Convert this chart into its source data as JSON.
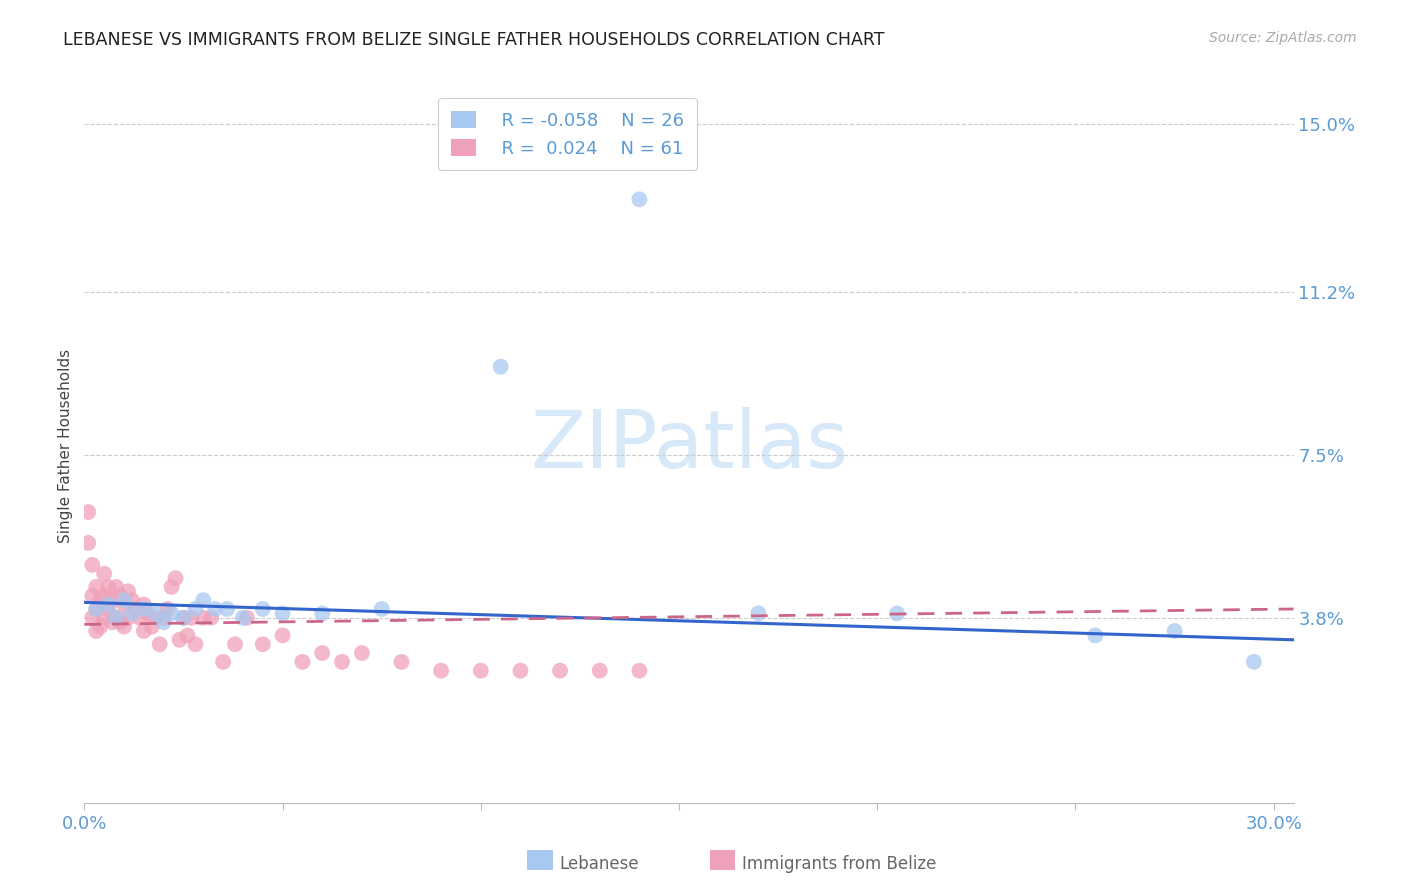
{
  "title": "LEBANESE VS IMMIGRANTS FROM BELIZE SINGLE FATHER HOUSEHOLDS CORRELATION CHART",
  "source": "Source: ZipAtlas.com",
  "ylabel": "Single Father Households",
  "title_color": "#222222",
  "source_color": "#aaaaaa",
  "axis_tick_color": "#5b9bd5",
  "blue_color": "#a8c8f0",
  "pink_color": "#f0a0b8",
  "line_blue_color": "#3366cc",
  "line_pink_color": "#cc6688",
  "grid_color": "#cccccc",
  "watermark_color": "#d0e4f7",
  "legend_label_color": "#5b9bd5",
  "legend_r1": "R = -0.058",
  "legend_n1": "N = 26",
  "legend_r2": "R =  0.024",
  "legend_n2": "N = 61",
  "bottom_legend_blue_label": "Lebanese",
  "bottom_legend_pink_label": "Immigrants from Belize",
  "xlim_min": 0.0,
  "xlim_max": 0.305,
  "ylim_min": -0.004,
  "ylim_max": 0.158,
  "ytick_vals": [
    0.038,
    0.075,
    0.112,
    0.15
  ],
  "ytick_labels": [
    "3.8%",
    "7.5%",
    "11.2%",
    "15.0%"
  ],
  "xtick_vals": [
    0.0,
    0.05,
    0.1,
    0.15,
    0.2,
    0.25,
    0.3
  ],
  "xtick_labels": [
    "0.0%",
    "",
    "",
    "",
    "",
    "",
    "30.0%"
  ],
  "leb_x": [
    0.003,
    0.006,
    0.008,
    0.01,
    0.012,
    0.015,
    0.018,
    0.02,
    0.022,
    0.025,
    0.028,
    0.03,
    0.033,
    0.036,
    0.04,
    0.045,
    0.05,
    0.06,
    0.075,
    0.105,
    0.14,
    0.17,
    0.205,
    0.255,
    0.275,
    0.295
  ],
  "leb_y": [
    0.04,
    0.041,
    0.038,
    0.042,
    0.039,
    0.04,
    0.039,
    0.037,
    0.039,
    0.038,
    0.04,
    0.042,
    0.04,
    0.04,
    0.038,
    0.04,
    0.039,
    0.039,
    0.04,
    0.095,
    0.133,
    0.039,
    0.039,
    0.034,
    0.035,
    0.028
  ],
  "bel_x": [
    0.001,
    0.001,
    0.002,
    0.002,
    0.002,
    0.003,
    0.003,
    0.003,
    0.004,
    0.004,
    0.005,
    0.005,
    0.005,
    0.006,
    0.006,
    0.007,
    0.007,
    0.008,
    0.008,
    0.009,
    0.009,
    0.01,
    0.01,
    0.011,
    0.011,
    0.012,
    0.013,
    0.014,
    0.015,
    0.015,
    0.016,
    0.017,
    0.018,
    0.019,
    0.02,
    0.021,
    0.022,
    0.023,
    0.024,
    0.025,
    0.026,
    0.027,
    0.028,
    0.03,
    0.032,
    0.035,
    0.038,
    0.041,
    0.045,
    0.05,
    0.055,
    0.06,
    0.065,
    0.07,
    0.08,
    0.09,
    0.1,
    0.11,
    0.12,
    0.13,
    0.14
  ],
  "bel_y": [
    0.062,
    0.055,
    0.05,
    0.043,
    0.038,
    0.045,
    0.04,
    0.035,
    0.042,
    0.036,
    0.048,
    0.043,
    0.038,
    0.045,
    0.04,
    0.042,
    0.037,
    0.045,
    0.038,
    0.043,
    0.037,
    0.041,
    0.036,
    0.044,
    0.038,
    0.042,
    0.04,
    0.038,
    0.041,
    0.035,
    0.039,
    0.036,
    0.038,
    0.032,
    0.038,
    0.04,
    0.045,
    0.047,
    0.033,
    0.038,
    0.034,
    0.038,
    0.032,
    0.038,
    0.038,
    0.028,
    0.032,
    0.038,
    0.032,
    0.034,
    0.028,
    0.03,
    0.028,
    0.03,
    0.028,
    0.026,
    0.026,
    0.026,
    0.026,
    0.026,
    0.026
  ],
  "leb_trend_x": [
    0.0,
    0.305
  ],
  "leb_trend_y_start": 0.0415,
  "leb_trend_y_end": 0.033,
  "bel_trend_x": [
    0.0,
    0.305
  ],
  "bel_trend_y_start": 0.0365,
  "bel_trend_y_end": 0.04
}
